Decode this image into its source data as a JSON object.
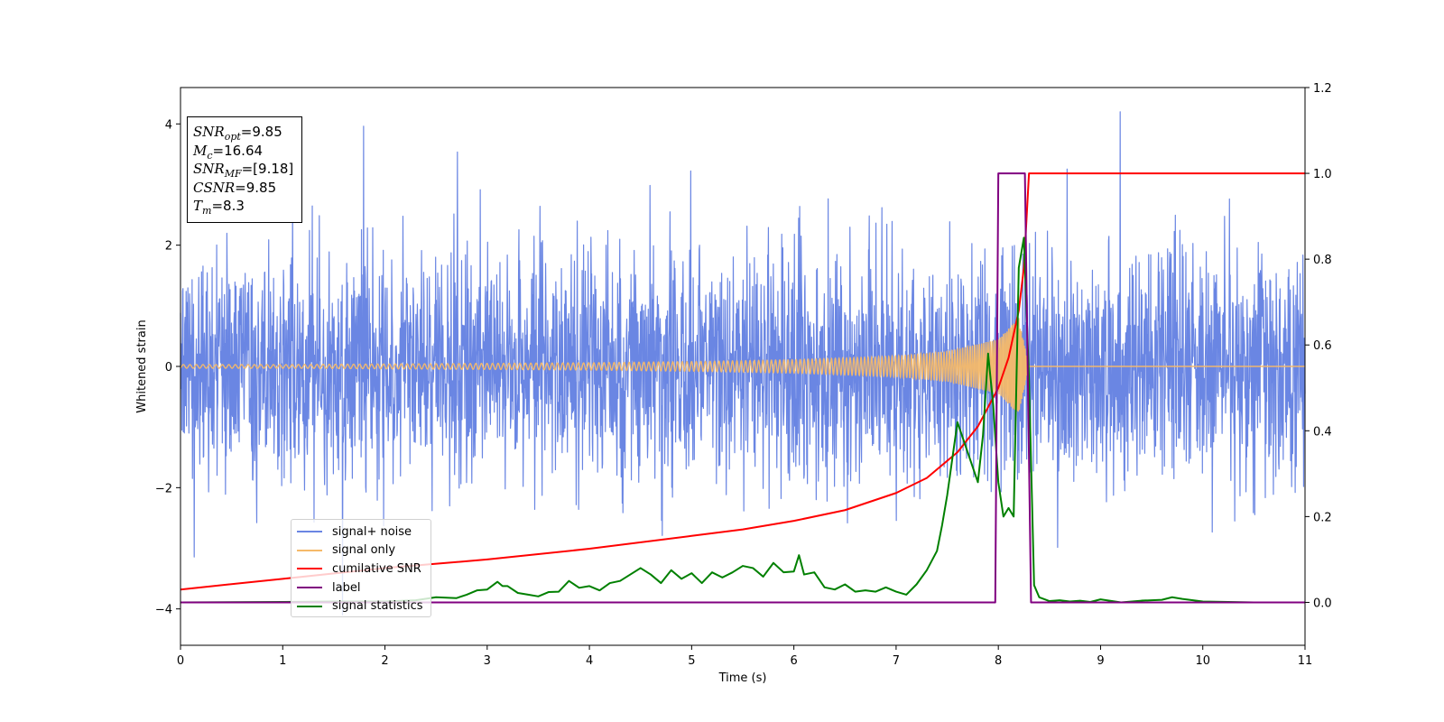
{
  "chart_data": {
    "type": "line",
    "xlabel": "Time (s)",
    "ylabel": "Whitened strain",
    "xlim": [
      0,
      11
    ],
    "ylim_left": [
      -4.6,
      4.6
    ],
    "ylim_right": [
      -0.1,
      1.2
    ],
    "x_ticks": [
      "0",
      "1",
      "2",
      "3",
      "4",
      "5",
      "6",
      "7",
      "8",
      "9",
      "10",
      "11"
    ],
    "y_left_ticks": [
      "−4",
      "−2",
      "0",
      "2",
      "4"
    ],
    "y_right_ticks": [
      "0.0",
      "0.2",
      "0.4",
      "0.6",
      "0.8",
      "1.0",
      "1.2"
    ],
    "annotation": {
      "snr_opt": "=9.85",
      "mc": "=16.64",
      "snr_mf": "=[9.18]",
      "csnr": "=9.85",
      "tm": "=8.3"
    },
    "series": [
      {
        "name": "signal+ noise",
        "axis": "left",
        "color": "#6a86e3",
        "description": "whitened noisy strain, amplitude about ±2 with peaks near ±4",
        "x": [
          0,
          11
        ],
        "y_range": [
          -4.1,
          4.2
        ]
      },
      {
        "name": "signal only",
        "axis": "left",
        "color": "#f5b969",
        "x": [
          0,
          1,
          2,
          3,
          4,
          5,
          6,
          7,
          7.5,
          8,
          8.2,
          8.3,
          9,
          11
        ],
        "envelope": [
          0.03,
          0.03,
          0.04,
          0.05,
          0.06,
          0.08,
          0.11,
          0.17,
          0.25,
          0.45,
          0.8,
          0,
          0,
          0
        ]
      },
      {
        "name": "cumilative SNR",
        "axis": "right",
        "color": "#ff0000",
        "x": [
          0,
          1,
          2,
          3,
          4,
          5,
          5.5,
          6,
          6.5,
          7,
          7.3,
          7.6,
          7.8,
          8.0,
          8.1,
          8.2,
          8.25,
          8.3,
          11
        ],
        "y": [
          0.03,
          0.055,
          0.08,
          0.1,
          0.125,
          0.155,
          0.17,
          0.19,
          0.215,
          0.255,
          0.29,
          0.35,
          0.41,
          0.5,
          0.57,
          0.68,
          0.78,
          1.0,
          1.0
        ]
      },
      {
        "name": "label",
        "axis": "right",
        "color": "#800080",
        "x": [
          0,
          7.97,
          8.0,
          8.26,
          8.32,
          11
        ],
        "y": [
          0.0,
          0.0,
          1.0,
          1.0,
          0.0,
          0.0
        ]
      },
      {
        "name": "signal statistics",
        "axis": "right",
        "color": "#008000",
        "x": [
          0,
          1,
          1.5,
          2,
          2.3,
          2.5,
          2.7,
          2.8,
          2.9,
          3.0,
          3.1,
          3.15,
          3.2,
          3.3,
          3.4,
          3.5,
          3.6,
          3.7,
          3.8,
          3.9,
          4.0,
          4.1,
          4.2,
          4.3,
          4.4,
          4.5,
          4.6,
          4.7,
          4.8,
          4.9,
          5.0,
          5.1,
          5.2,
          5.3,
          5.4,
          5.5,
          5.6,
          5.7,
          5.8,
          5.9,
          6.0,
          6.05,
          6.1,
          6.2,
          6.3,
          6.4,
          6.5,
          6.6,
          6.7,
          6.8,
          6.9,
          7.0,
          7.1,
          7.2,
          7.3,
          7.4,
          7.45,
          7.5,
          7.6,
          7.7,
          7.8,
          7.85,
          7.9,
          7.95,
          8.0,
          8.05,
          8.1,
          8.15,
          8.2,
          8.25,
          8.3,
          8.35,
          8.4,
          8.5,
          8.6,
          8.7,
          8.8,
          8.9,
          9.0,
          9.2,
          9.4,
          9.6,
          9.7,
          9.8,
          10.0,
          10.5,
          11.0
        ],
        "y": [
          0.0,
          0.001,
          0.002,
          0.002,
          0.005,
          0.012,
          0.01,
          0.018,
          0.028,
          0.03,
          0.048,
          0.038,
          0.038,
          0.022,
          0.018,
          0.014,
          0.024,
          0.025,
          0.05,
          0.034,
          0.038,
          0.028,
          0.045,
          0.05,
          0.065,
          0.08,
          0.065,
          0.045,
          0.075,
          0.055,
          0.068,
          0.045,
          0.07,
          0.058,
          0.07,
          0.085,
          0.08,
          0.06,
          0.092,
          0.07,
          0.072,
          0.11,
          0.065,
          0.07,
          0.035,
          0.03,
          0.042,
          0.025,
          0.028,
          0.025,
          0.035,
          0.025,
          0.018,
          0.042,
          0.075,
          0.12,
          0.18,
          0.25,
          0.42,
          0.35,
          0.28,
          0.39,
          0.58,
          0.46,
          0.28,
          0.2,
          0.22,
          0.2,
          0.78,
          0.85,
          0.52,
          0.04,
          0.012,
          0.003,
          0.005,
          0.002,
          0.004,
          0.001,
          0.007,
          0.0,
          0.004,
          0.006,
          0.012,
          0.008,
          0.002,
          0.0,
          0.0
        ]
      }
    ],
    "legend_placement": "lower-left",
    "grid": false
  },
  "legend": {
    "items": [
      {
        "label": "signal+ noise",
        "color": "#6a86e3"
      },
      {
        "label": "signal only",
        "color": "#f5b969"
      },
      {
        "label": "cumilative SNR",
        "color": "#ff0000"
      },
      {
        "label": "label",
        "color": "#800080"
      },
      {
        "label": "signal statistics",
        "color": "#008000"
      }
    ]
  },
  "labels": {
    "snr": "SNR",
    "opt": "opt",
    "m": "M",
    "c": "c",
    "mf": "MF",
    "csnr": "CSNR",
    "t": "T",
    "tm_sub": "m"
  }
}
